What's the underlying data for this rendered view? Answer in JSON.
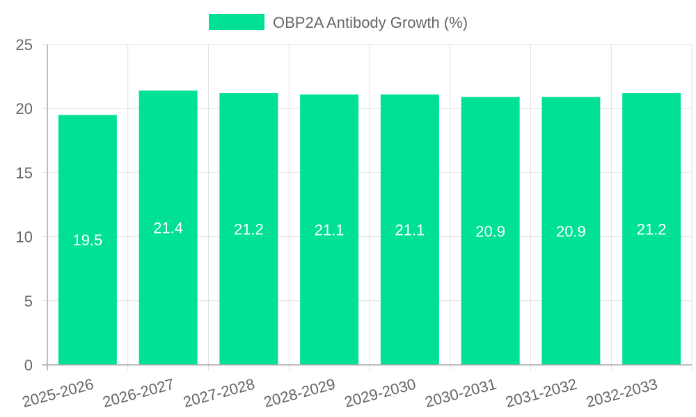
{
  "chart_data": {
    "type": "bar",
    "categories": [
      "2025-2026",
      "2026-2027",
      "2027-2028",
      "2028-2029",
      "2029-2030",
      "2030-2031",
      "2031-2032",
      "2032-2033"
    ],
    "series": [
      {
        "name": "OBP2A Antibody Growth (%)",
        "values": [
          19.5,
          21.4,
          21.2,
          21.1,
          21.1,
          20.9,
          20.9,
          21.2
        ],
        "color": "#00e096"
      }
    ],
    "data_labels": [
      "19.5",
      "21.4",
      "21.2",
      "21.1",
      "21.1",
      "20.9",
      "20.9",
      "21.2"
    ],
    "y_ticks": [
      "0",
      "5",
      "10",
      "15",
      "20",
      "25"
    ],
    "ylim": [
      0,
      25
    ],
    "title": "",
    "xlabel": "",
    "ylabel": "",
    "grid": true,
    "legend_position": "top",
    "label_color": "#ffffff",
    "tick_color": "#666666",
    "grid_color": "#e1e1e1"
  }
}
